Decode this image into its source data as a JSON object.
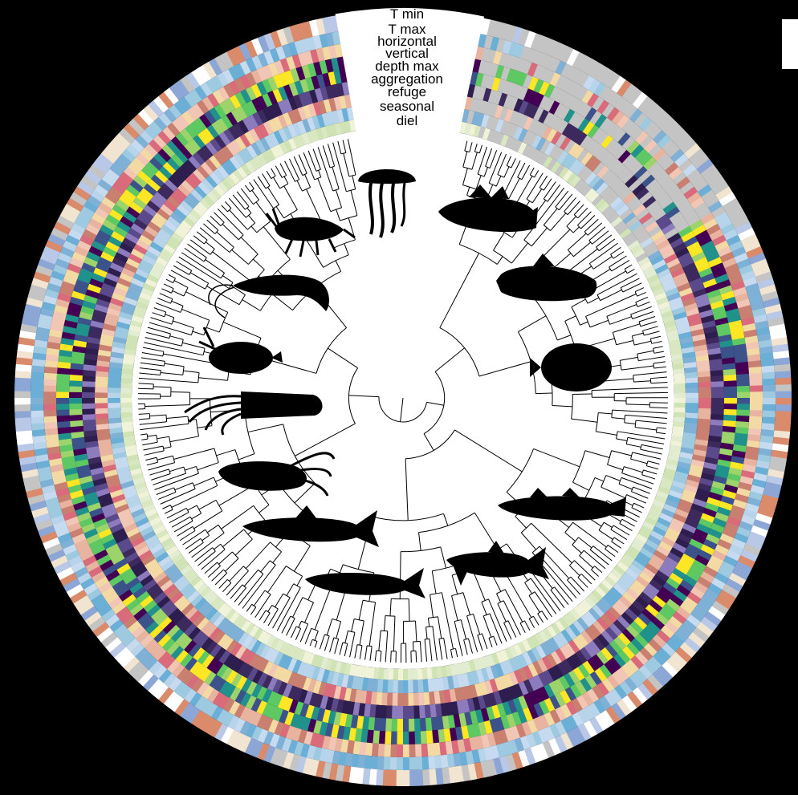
{
  "ring_labels": [
    {
      "id": "t-min",
      "text": "T min"
    },
    {
      "id": "t-max",
      "text": "T max"
    },
    {
      "id": "horizontal",
      "text": "horizontal"
    },
    {
      "id": "vertical",
      "text": "vertical"
    },
    {
      "id": "depth-max",
      "text": "depth max"
    },
    {
      "id": "aggregation",
      "text": "aggregation"
    },
    {
      "id": "refuge",
      "text": "refuge"
    },
    {
      "id": "seasonal",
      "text": "seasonal"
    },
    {
      "id": "diel",
      "text": "diel"
    }
  ],
  "colors": {
    "background": "#000000",
    "disc": "#ffffff",
    "tree": "#000000",
    "missing": "#c4c4c4",
    "palettes": {
      "viridis": [
        "#440154",
        "#3b528b",
        "#21918c",
        "#5ec962",
        "#fde725",
        "#9dd36b"
      ],
      "pale": [
        "#d9e8c0",
        "#e2ecd0",
        "#cfe3b4",
        "#f1f3d9"
      ],
      "blues": [
        "#9ecae1",
        "#6baed6",
        "#b7d4ea",
        "#c6dbef",
        "#7fb0d6"
      ],
      "purples": [
        "#2d1e4f",
        "#5b4a8b",
        "#8c7bbd",
        "#3c2a5e"
      ],
      "warm": [
        "#d96b7a",
        "#e8b4a0",
        "#f3d9a4",
        "#c98070",
        "#f2c6b4"
      ],
      "mixed": [
        "#8ca6d6",
        "#b8c8e6",
        "#f1e4d0",
        "#ffffff",
        "#d98b6b",
        "#c4c4c4"
      ]
    }
  },
  "silhouettes": [
    {
      "id": "jellyfish",
      "icon": "jellyfish-icon"
    },
    {
      "id": "amphipod",
      "icon": "amphipod-icon"
    },
    {
      "id": "shrimp",
      "icon": "shrimp-icon"
    },
    {
      "id": "pteropod",
      "icon": "pteropod-icon"
    },
    {
      "id": "squid",
      "icon": "squid-icon"
    },
    {
      "id": "octopus-squid",
      "icon": "squid-icon"
    },
    {
      "id": "lanternfish",
      "icon": "fish-icon"
    },
    {
      "id": "herring",
      "icon": "fish-icon"
    },
    {
      "id": "smelt",
      "icon": "fish-icon"
    },
    {
      "id": "cod",
      "icon": "fish-icon"
    },
    {
      "id": "flatfish",
      "icon": "flatfish-icon"
    },
    {
      "id": "sculpin",
      "icon": "fish-icon"
    },
    {
      "id": "rockfish",
      "icon": "fish-icon"
    }
  ]
}
